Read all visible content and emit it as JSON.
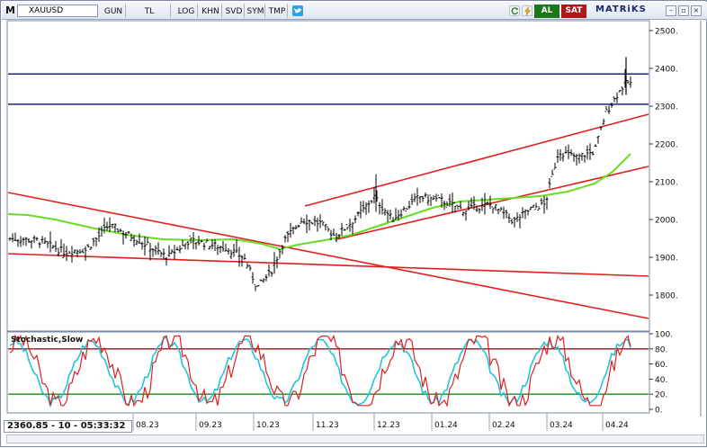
{
  "toolbar": {
    "symbol": "XAUUSD",
    "m_label": "M",
    "buttons": [
      "GUN",
      "TL",
      "LOG",
      "KHN",
      "SVD",
      "SYM",
      "TMP"
    ],
    "buy_label": "AL",
    "sell_label": "SAT",
    "brand": "MATRiKS"
  },
  "status": {
    "readout": "2360.85 - 10 - 05:33:32"
  },
  "price_axis": {
    "ticks": [
      "2500.",
      "2400.",
      "2300.",
      "2200.",
      "2100.",
      "2000.",
      "1900.",
      "1800."
    ]
  },
  "stochastic": {
    "title": "Stochastic,Slow",
    "ticks": [
      "100.",
      "80.",
      "60.",
      "40.",
      "20.",
      "0."
    ],
    "upper_level": 80,
    "lower_level": 20
  },
  "time_axis": {
    "labels": [
      "08.23",
      "09.23",
      "10.23",
      "11.23",
      "12.23",
      "01.24",
      "02.24",
      "03.24",
      "04.24"
    ]
  },
  "colors": {
    "channel": "#e02020",
    "horizontal": "#1a237e",
    "ma": "#66dd22",
    "stoch_fast": "#e02020",
    "stoch_slow": "#22c4d8",
    "level_hi": "#8b1a1a",
    "level_lo": "#1a8b1a"
  },
  "icons": [
    "twitter-icon",
    "refresh-icon",
    "lightning-icon"
  ]
}
